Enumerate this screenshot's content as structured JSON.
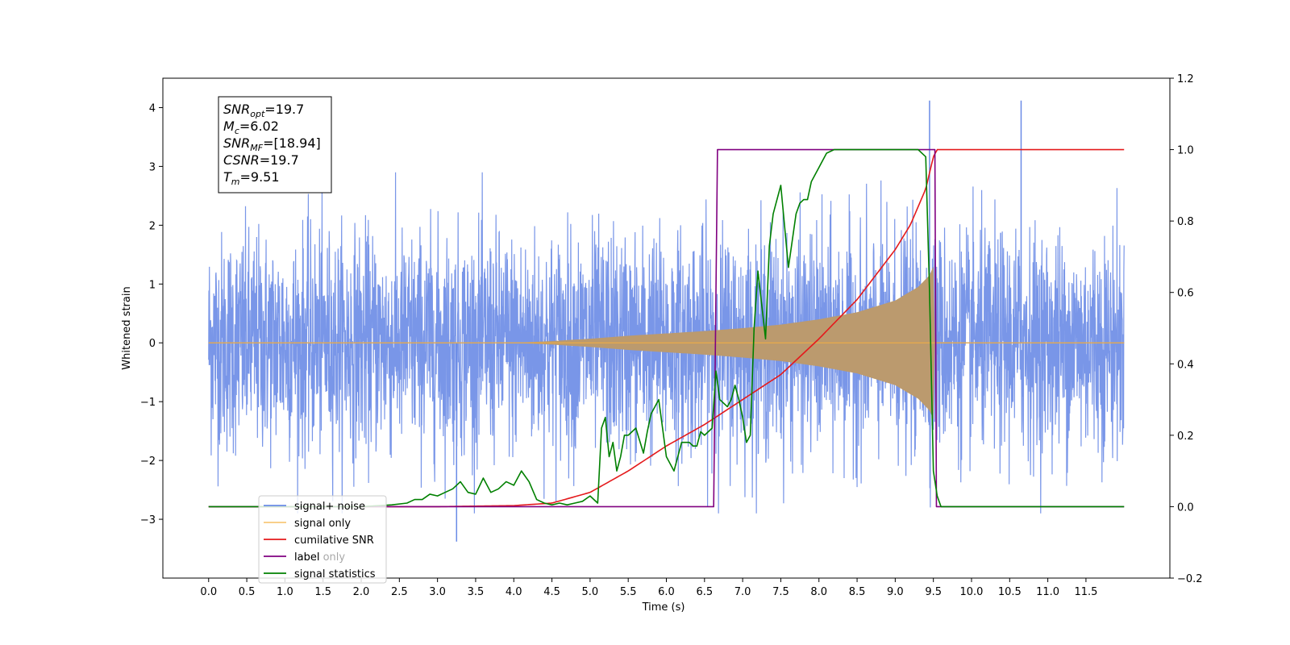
{
  "chart_data": {
    "type": "line",
    "title": "",
    "xlabel": "Time (s)",
    "ylabel": "Whitened strain",
    "ylabel_right": "",
    "xlim": [
      -0.6,
      12.6
    ],
    "ylim": [
      -4.0,
      4.5
    ],
    "ylim_right": [
      -0.2,
      1.2
    ],
    "x_ticks": [
      0.0,
      0.5,
      1.0,
      1.5,
      2.0,
      2.5,
      3.0,
      3.5,
      4.0,
      4.5,
      5.0,
      5.5,
      6.0,
      6.5,
      7.0,
      7.5,
      8.0,
      8.5,
      9.0,
      9.5,
      10.0,
      10.5,
      11.0,
      11.5
    ],
    "x_tick_labels": [
      "0.0",
      "0.5",
      "1.0",
      "1.5",
      "2.0",
      "2.5",
      "3.0",
      "3.5",
      "4.0",
      "4.5",
      "5.0",
      "5.5",
      "6.0",
      "6.5",
      "7.0",
      "7.5",
      "8.0",
      "8.5",
      "9.0",
      "9.5",
      "10.0",
      "10.5",
      "11.0",
      "11.5"
    ],
    "y_ticks": [
      4,
      3,
      2,
      1,
      0,
      -1,
      -2,
      -3
    ],
    "y_tick_labels": [
      "4",
      "3",
      "2",
      "1",
      "0",
      "−1",
      "−2",
      "−3"
    ],
    "y_right_ticks": [
      1.2,
      1.0,
      0.8,
      0.6,
      0.4,
      0.2,
      0.0,
      -0.2
    ],
    "y_right_tick_labels": [
      "1.2",
      "1.0",
      "0.8",
      "0.6",
      "0.4",
      "0.2",
      "0.0",
      "−0.2"
    ],
    "grid": false,
    "legend_position": "bottom-left",
    "series": [
      {
        "name": "signal+ noise",
        "axis": "left",
        "color": "#6a8be6",
        "kind": "noise_band",
        "x_range": [
          0.0,
          12.0
        ],
        "typical_amplitude": 1.5,
        "peak_max": 4.12,
        "peak_min": -3.38
      },
      {
        "name": "signal only",
        "axis": "left",
        "color": "#f5b041",
        "kind": "chirp_envelope",
        "x": [
          0.0,
          4.0,
          4.5,
          5.0,
          5.5,
          6.0,
          6.5,
          7.0,
          7.5,
          8.0,
          8.5,
          9.0,
          9.3,
          9.45,
          9.5,
          9.51,
          9.52,
          12.0
        ],
        "envelope": [
          0.0,
          0.0,
          0.03,
          0.07,
          0.12,
          0.16,
          0.2,
          0.25,
          0.31,
          0.4,
          0.52,
          0.72,
          0.95,
          1.15,
          1.3,
          0.0,
          0.0,
          0.0
        ]
      },
      {
        "name": "cumilative SNR",
        "axis": "right",
        "color": "#e41a1c",
        "x": [
          0.0,
          3.0,
          4.0,
          4.5,
          5.0,
          5.5,
          6.0,
          6.5,
          7.0,
          7.5,
          8.0,
          8.5,
          9.0,
          9.2,
          9.4,
          9.5,
          9.55,
          12.0
        ],
        "y": [
          0.0,
          0.0,
          0.003,
          0.01,
          0.04,
          0.1,
          0.17,
          0.23,
          0.3,
          0.37,
          0.47,
          0.58,
          0.72,
          0.79,
          0.89,
          0.98,
          1.0,
          1.0
        ]
      },
      {
        "name": "label",
        "axis": "right",
        "color": "#800080",
        "x": [
          0.0,
          6.62,
          6.67,
          9.52,
          9.54,
          12.0
        ],
        "y": [
          0.0,
          0.0,
          1.0,
          1.0,
          0.0,
          0.0
        ]
      },
      {
        "name": "signal statistics",
        "axis": "right",
        "color": "#008000",
        "x": [
          0.0,
          2.0,
          2.4,
          2.6,
          2.7,
          2.8,
          2.9,
          3.0,
          3.1,
          3.2,
          3.3,
          3.4,
          3.5,
          3.6,
          3.7,
          3.8,
          3.9,
          4.0,
          4.1,
          4.2,
          4.3,
          4.4,
          4.5,
          4.6,
          4.7,
          4.8,
          4.9,
          5.0,
          5.1,
          5.15,
          5.2,
          5.25,
          5.3,
          5.35,
          5.4,
          5.45,
          5.5,
          5.6,
          5.7,
          5.75,
          5.8,
          5.9,
          6.0,
          6.1,
          6.2,
          6.3,
          6.35,
          6.4,
          6.45,
          6.5,
          6.6,
          6.65,
          6.7,
          6.8,
          6.85,
          6.9,
          6.95,
          7.0,
          7.05,
          7.1,
          7.15,
          7.2,
          7.3,
          7.35,
          7.4,
          7.5,
          7.6,
          7.7,
          7.75,
          7.8,
          7.85,
          7.9,
          8.0,
          8.1,
          8.2,
          8.3,
          8.5,
          9.0,
          9.3,
          9.4,
          9.45,
          9.5,
          9.55,
          9.6,
          12.0
        ],
        "y": [
          0.0,
          0.0,
          0.005,
          0.01,
          0.02,
          0.02,
          0.035,
          0.03,
          0.04,
          0.05,
          0.07,
          0.04,
          0.035,
          0.08,
          0.04,
          0.05,
          0.07,
          0.06,
          0.1,
          0.07,
          0.02,
          0.01,
          0.005,
          0.01,
          0.005,
          0.01,
          0.015,
          0.03,
          0.01,
          0.22,
          0.25,
          0.14,
          0.18,
          0.1,
          0.14,
          0.2,
          0.2,
          0.22,
          0.15,
          0.21,
          0.26,
          0.3,
          0.14,
          0.1,
          0.18,
          0.18,
          0.17,
          0.17,
          0.21,
          0.2,
          0.22,
          0.38,
          0.3,
          0.28,
          0.3,
          0.34,
          0.3,
          0.25,
          0.18,
          0.2,
          0.5,
          0.66,
          0.47,
          0.73,
          0.82,
          0.9,
          0.67,
          0.82,
          0.85,
          0.86,
          0.86,
          0.91,
          0.95,
          0.99,
          1.0,
          1.0,
          1.0,
          1.0,
          1.0,
          0.98,
          0.6,
          0.1,
          0.03,
          0.0,
          0.0
        ]
      }
    ],
    "annotation_box": {
      "lines": [
        {
          "base": "SNR",
          "sub": "opt",
          "value": "=19.7"
        },
        {
          "base": "M",
          "sub": "c",
          "value": "=6.02"
        },
        {
          "base": "SNR",
          "sub": "MF",
          "value": "=[18.94]"
        },
        {
          "base": "CSNR",
          "sub": "",
          "value": "=19.7"
        },
        {
          "base": "T",
          "sub": "m",
          "value": "=9.51"
        }
      ]
    },
    "legend_overlap_text": "label only",
    "legend_entries": [
      "signal+ noise",
      "signal only",
      "cumilative SNR",
      "label",
      "signal statistics"
    ]
  }
}
